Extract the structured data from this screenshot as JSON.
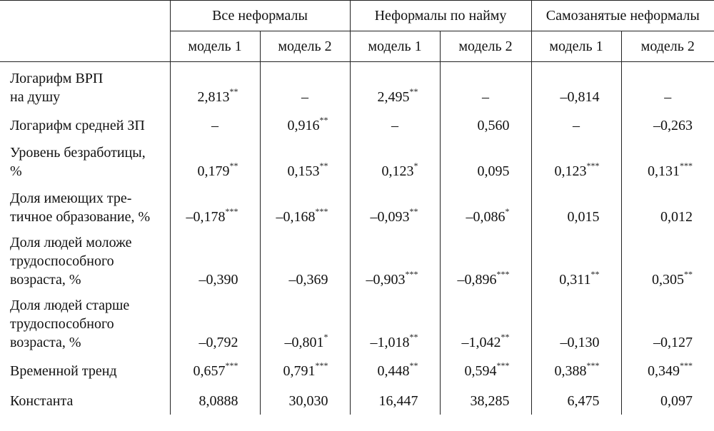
{
  "headers": {
    "groups": [
      "Все неформалы",
      "Неформалы по найму",
      "Самозанятые неформалы"
    ],
    "models": [
      "модель 1",
      "модель 2",
      "модель 1",
      "модель 2",
      "модель 1",
      "модель 2"
    ]
  },
  "rows": [
    {
      "label_lines": [
        "Логарифм ВРП",
        "на душу"
      ],
      "cells": [
        {
          "v": "2,813",
          "s": "**"
        },
        {
          "v": "–",
          "s": ""
        },
        {
          "v": "2,495",
          "s": "**"
        },
        {
          "v": "–",
          "s": ""
        },
        {
          "v": "–0,814",
          "s": ""
        },
        {
          "v": "–",
          "s": ""
        }
      ]
    },
    {
      "label_lines": [
        "Логарифм средней ЗП"
      ],
      "cells": [
        {
          "v": "–",
          "s": ""
        },
        {
          "v": "0,916",
          "s": "**"
        },
        {
          "v": "–",
          "s": ""
        },
        {
          "v": "0,560",
          "s": ""
        },
        {
          "v": "–",
          "s": ""
        },
        {
          "v": "–0,263",
          "s": ""
        }
      ]
    },
    {
      "label_lines": [
        "Уровень безработицы,",
        "%"
      ],
      "cells": [
        {
          "v": "0,179",
          "s": "**"
        },
        {
          "v": "0,153",
          "s": "**"
        },
        {
          "v": "0,123",
          "s": "*"
        },
        {
          "v": "0,095",
          "s": ""
        },
        {
          "v": "0,123",
          "s": "***"
        },
        {
          "v": "0,131",
          "s": "***"
        }
      ]
    },
    {
      "label_lines": [
        "Доля имеющих тре-",
        "тичное образование, %"
      ],
      "cells": [
        {
          "v": "–0,178",
          "s": "***"
        },
        {
          "v": "–0,168",
          "s": "***"
        },
        {
          "v": "–0,093",
          "s": "**"
        },
        {
          "v": "–0,086",
          "s": "*"
        },
        {
          "v": "0,015",
          "s": ""
        },
        {
          "v": "0,012",
          "s": ""
        }
      ]
    },
    {
      "label_lines": [
        "Доля людей моложе",
        "трудоспособного",
        "возраста, %"
      ],
      "cells": [
        {
          "v": "–0,390",
          "s": ""
        },
        {
          "v": "–0,369",
          "s": ""
        },
        {
          "v": "–0,903",
          "s": "***"
        },
        {
          "v": "–0,896",
          "s": "***"
        },
        {
          "v": "0,311",
          "s": "**"
        },
        {
          "v": "0,305",
          "s": "**"
        }
      ]
    },
    {
      "label_lines": [
        "Доля людей старше",
        "трудоспособного",
        "возраста, %"
      ],
      "cells": [
        {
          "v": "–0,792",
          "s": ""
        },
        {
          "v": "–0,801",
          "s": "*"
        },
        {
          "v": "–1,018",
          "s": "**"
        },
        {
          "v": "–1,042",
          "s": "**"
        },
        {
          "v": "–0,130",
          "s": ""
        },
        {
          "v": "–0,127",
          "s": ""
        }
      ]
    },
    {
      "label_lines": [
        "Временной тренд"
      ],
      "cells": [
        {
          "v": "0,657",
          "s": "***"
        },
        {
          "v": "0,791",
          "s": "***"
        },
        {
          "v": "0,448",
          "s": "**"
        },
        {
          "v": "0,594",
          "s": "***"
        },
        {
          "v": "0,388",
          "s": "***"
        },
        {
          "v": "0,349",
          "s": "***"
        }
      ]
    },
    {
      "label_lines": [
        "Константа"
      ],
      "cells": [
        {
          "v": "8,0888",
          "s": ""
        },
        {
          "v": "30,030",
          "s": ""
        },
        {
          "v": "16,447",
          "s": ""
        },
        {
          "v": "38,285",
          "s": ""
        },
        {
          "v": "6,475",
          "s": ""
        },
        {
          "v": "0,097",
          "s": ""
        }
      ]
    }
  ]
}
